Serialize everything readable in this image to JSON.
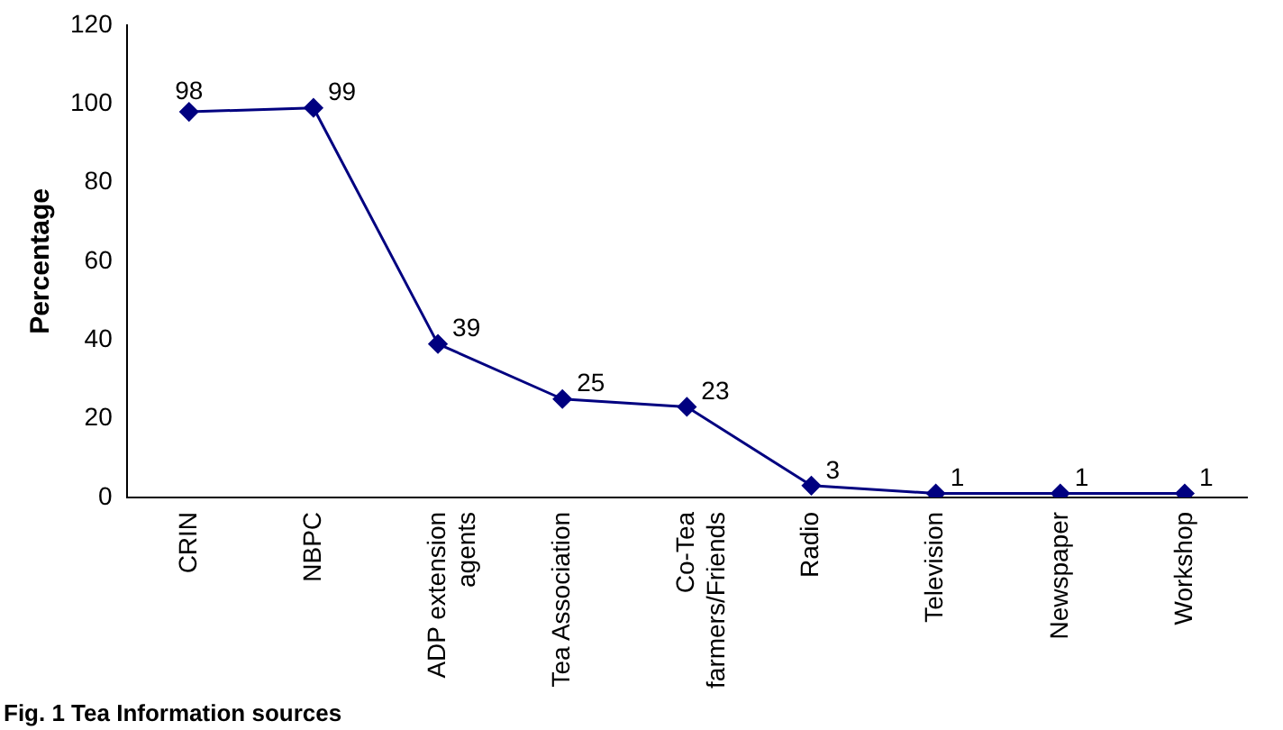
{
  "chart_data": {
    "type": "line",
    "ylabel": "Percentage",
    "categories": [
      "CRIN",
      "NBPC",
      "ADP extension agents",
      "Tea Association",
      "Co-Tea farmers/Friends",
      "Radio",
      "Television",
      "Newspaper",
      "Workshop"
    ],
    "series": [
      {
        "color": "#000080",
        "values": [
          98,
          99,
          39,
          25,
          23,
          3,
          1,
          1,
          1
        ]
      }
    ],
    "ylim": [
      0,
      120
    ],
    "yticks": [
      0,
      20,
      40,
      60,
      80,
      100,
      120
    ],
    "grid": false,
    "legend": false,
    "marker": "diamond",
    "line_style": "solid",
    "data_labels": true,
    "annotations": [
      "Fig. 1 Tea Information sources"
    ]
  }
}
